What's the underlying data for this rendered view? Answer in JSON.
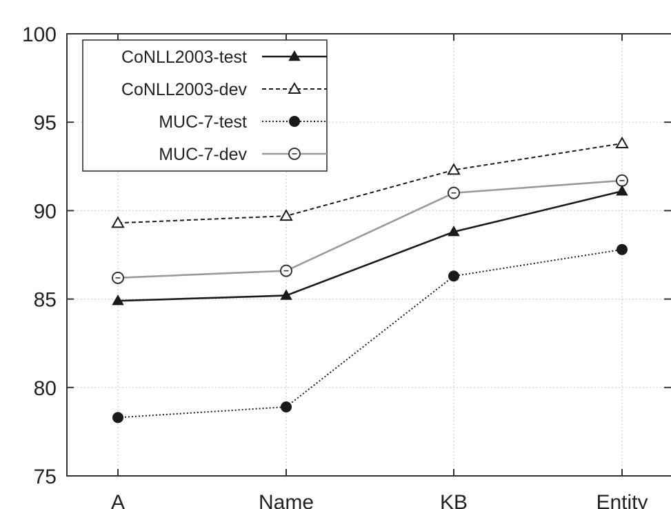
{
  "chart_data": {
    "type": "line",
    "categories": [
      "A",
      "Name",
      "KB",
      "Entity"
    ],
    "ylim": [
      75,
      100
    ],
    "yticks": [
      "75",
      "80",
      "85",
      "90",
      "95",
      "100"
    ],
    "grid": true,
    "legend_position": "top-left",
    "series": [
      {
        "name": "CoNLL2003-test",
        "values": [
          84.9,
          85.2,
          88.8,
          91.1
        ],
        "line_style": "solid",
        "marker": "filled-triangle",
        "color": "#1a1a1a"
      },
      {
        "name": "CoNLL2003-dev",
        "values": [
          89.3,
          89.7,
          92.3,
          93.8
        ],
        "line_style": "dashed",
        "marker": "open-triangle",
        "color": "#1a1a1a"
      },
      {
        "name": "MUC-7-test",
        "values": [
          78.3,
          78.9,
          86.3,
          87.8
        ],
        "line_style": "dotted",
        "marker": "filled-circle",
        "color": "#1a1a1a"
      },
      {
        "name": "MUC-7-dev",
        "values": [
          86.2,
          86.6,
          91.0,
          91.7
        ],
        "line_style": "solid",
        "marker": "open-circle",
        "color": "#9a9a9a"
      }
    ]
  }
}
